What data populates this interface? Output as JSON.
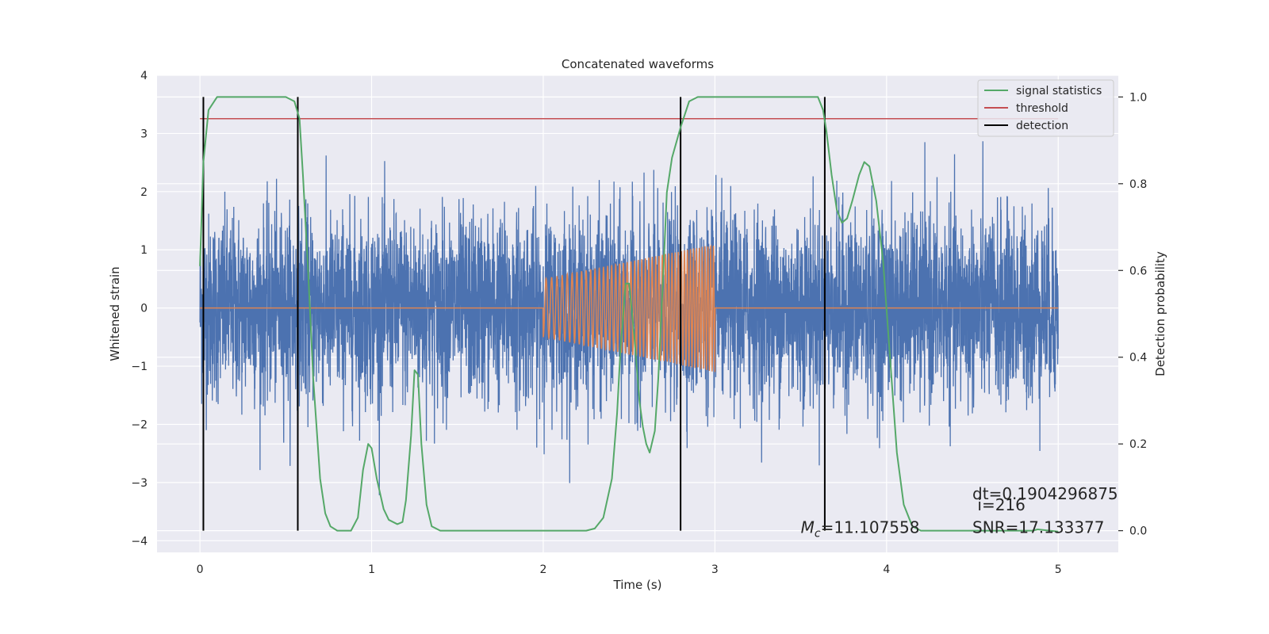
{
  "chart_data": {
    "type": "line",
    "title": "Concatenated waveforms",
    "xlabel": "Time (s)",
    "ylabel": "Whitened strain",
    "ylabel_right": "Detection probability",
    "xlim": [
      -0.25,
      5.35
    ],
    "ylim": [
      -4.2,
      4.0
    ],
    "ylim_right": [
      -0.05,
      1.05
    ],
    "x_ticks": [
      0,
      1,
      2,
      3,
      4,
      5
    ],
    "y_ticks": [
      -4,
      -3,
      -2,
      -1,
      0,
      1,
      2,
      3,
      4
    ],
    "y_ticks_right": [
      0.0,
      0.2,
      0.4,
      0.6,
      0.8,
      1.0
    ],
    "grid": true,
    "legend_position": "top-right",
    "series": [
      {
        "name": "",
        "kind": "noise",
        "axis": "left",
        "color": "#4c72b0",
        "x_range": [
          0,
          5
        ],
        "description": "whitened strain noise, amplitude roughly within ±3.4"
      },
      {
        "name": "",
        "kind": "chirp",
        "axis": "left",
        "color": "#dd8452",
        "x_range": [
          0,
          5
        ],
        "chirp_start": 2.0,
        "chirp_end": 3.0,
        "amp_start": 0.5,
        "amp_end": 1.1
      },
      {
        "name": "signal statistics",
        "axis": "right",
        "color": "#55a868",
        "points": [
          [
            0.0,
            0.61
          ],
          [
            0.02,
            0.85
          ],
          [
            0.05,
            0.97
          ],
          [
            0.1,
            1.0
          ],
          [
            0.5,
            1.0
          ],
          [
            0.55,
            0.99
          ],
          [
            0.58,
            0.95
          ],
          [
            0.6,
            0.82
          ],
          [
            0.63,
            0.6
          ],
          [
            0.66,
            0.35
          ],
          [
            0.7,
            0.12
          ],
          [
            0.73,
            0.04
          ],
          [
            0.76,
            0.01
          ],
          [
            0.8,
            0.0
          ],
          [
            0.88,
            0.0
          ],
          [
            0.92,
            0.03
          ],
          [
            0.95,
            0.14
          ],
          [
            0.98,
            0.2
          ],
          [
            1.0,
            0.19
          ],
          [
            1.03,
            0.12
          ],
          [
            1.07,
            0.05
          ],
          [
            1.1,
            0.025
          ],
          [
            1.15,
            0.015
          ],
          [
            1.18,
            0.02
          ],
          [
            1.2,
            0.07
          ],
          [
            1.23,
            0.22
          ],
          [
            1.25,
            0.37
          ],
          [
            1.27,
            0.36
          ],
          [
            1.29,
            0.2
          ],
          [
            1.32,
            0.06
          ],
          [
            1.35,
            0.01
          ],
          [
            1.4,
            0.0
          ],
          [
            2.25,
            0.0
          ],
          [
            2.3,
            0.005
          ],
          [
            2.35,
            0.03
          ],
          [
            2.4,
            0.12
          ],
          [
            2.43,
            0.27
          ],
          [
            2.45,
            0.42
          ],
          [
            2.48,
            0.57
          ],
          [
            2.5,
            0.57
          ],
          [
            2.53,
            0.45
          ],
          [
            2.56,
            0.3
          ],
          [
            2.58,
            0.24
          ],
          [
            2.6,
            0.2
          ],
          [
            2.62,
            0.18
          ],
          [
            2.65,
            0.23
          ],
          [
            2.67,
            0.35
          ],
          [
            2.7,
            0.6
          ],
          [
            2.72,
            0.78
          ],
          [
            2.75,
            0.86
          ],
          [
            2.8,
            0.93
          ],
          [
            2.85,
            0.99
          ],
          [
            2.9,
            1.0
          ],
          [
            3.6,
            1.0
          ],
          [
            3.63,
            0.97
          ],
          [
            3.65,
            0.92
          ],
          [
            3.68,
            0.82
          ],
          [
            3.71,
            0.74
          ],
          [
            3.74,
            0.71
          ],
          [
            3.77,
            0.72
          ],
          [
            3.8,
            0.76
          ],
          [
            3.84,
            0.82
          ],
          [
            3.87,
            0.85
          ],
          [
            3.9,
            0.84
          ],
          [
            3.94,
            0.76
          ],
          [
            3.98,
            0.62
          ],
          [
            4.02,
            0.4
          ],
          [
            4.06,
            0.18
          ],
          [
            4.1,
            0.06
          ],
          [
            4.15,
            0.01
          ],
          [
            4.2,
            0.0
          ],
          [
            4.85,
            0.0
          ],
          [
            4.88,
            0.003
          ],
          [
            4.95,
            0.0
          ],
          [
            5.0,
            -0.002
          ]
        ]
      },
      {
        "name": "threshold",
        "axis": "right",
        "color": "#c44e52",
        "x": [
          0,
          5
        ],
        "y": [
          0.95,
          0.95
        ]
      },
      {
        "name": "detection",
        "axis": "right",
        "color": "#000000",
        "vertical_lines_x": [
          0.02,
          0.57,
          2.8,
          3.64
        ],
        "y_range": [
          0.0,
          1.0
        ]
      }
    ],
    "annotations": [
      {
        "id": "mc",
        "prefix_symbol": "M",
        "prefix_sub": "c",
        "text": "=11.107558",
        "x": 3.5,
        "y": 0.0
      },
      {
        "id": "dt",
        "text": "dt=0.1904296875",
        "x": 4.5,
        "y": 0.08
      },
      {
        "id": "i",
        "text": "i=216",
        "x": 4.5,
        "y": 0.045
      },
      {
        "id": "snr",
        "text": "SNR=17.133377",
        "x": 4.5,
        "y": 0.0
      }
    ]
  }
}
